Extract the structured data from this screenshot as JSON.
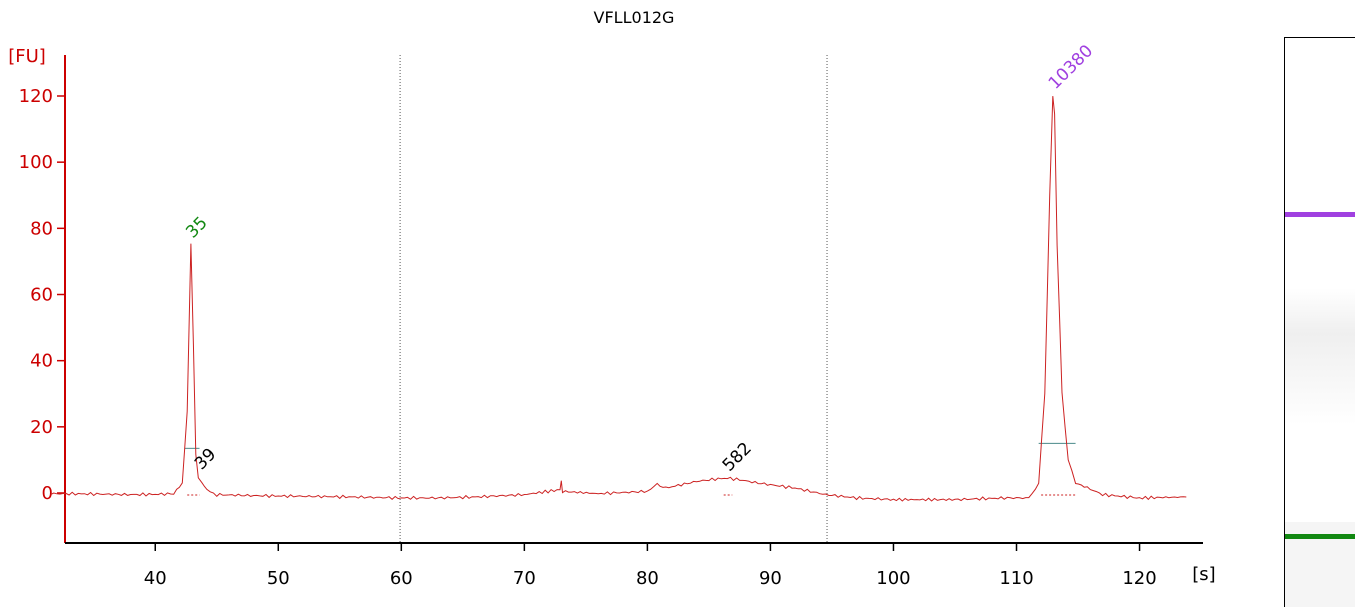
{
  "chart_data": {
    "type": "line",
    "title": "VFLL012G",
    "xlabel": "[s]",
    "ylabel": "[FU]",
    "xlim": [
      31,
      124
    ],
    "ylim": [
      -14,
      133
    ],
    "x_ticks": [
      40,
      50,
      60,
      70,
      80,
      90,
      100,
      110,
      120
    ],
    "y_ticks": [
      0,
      20,
      40,
      60,
      80,
      100,
      120
    ],
    "axis_color": "#cc0000",
    "series": [
      {
        "color": "#cc2222",
        "x": [
          31.5,
          35,
          38,
          40,
          41.5,
          42.2,
          42.6,
          42.9,
          43.1,
          43.3,
          43.5,
          43.8,
          44.2,
          45,
          48,
          52,
          56,
          60,
          63,
          66,
          70,
          72.9,
          73.0,
          73.1,
          76,
          80,
          80.8,
          81.5,
          84,
          85.5,
          86.5,
          87.5,
          89,
          92,
          94.5,
          97,
          100,
          105,
          109,
          111,
          111.8,
          112.3,
          112.7,
          112.95,
          113.1,
          113.3,
          113.7,
          114.2,
          114.8,
          115.5,
          117,
          120,
          123.8
        ],
        "y": [
          -0.2,
          -0.3,
          -0.5,
          -0.4,
          -0.2,
          3,
          25,
          75,
          45,
          12,
          5,
          3,
          1,
          -0.5,
          -0.8,
          -1,
          -1.2,
          -1.5,
          -1.5,
          -1.2,
          -0.5,
          1,
          3.5,
          0.5,
          -0.2,
          0.5,
          2.5,
          1.5,
          3.5,
          4.2,
          4.5,
          4,
          3,
          1.5,
          -0.5,
          -1.5,
          -2,
          -2,
          -1.5,
          -1.5,
          3,
          30,
          90,
          120,
          115,
          75,
          30,
          10,
          3,
          2,
          -0.5,
          -1.5,
          -1.2
        ]
      }
    ],
    "vertical_markers_x": [
      59.9,
      94.6
    ],
    "peak_labels": [
      {
        "text": "35",
        "x": 42.9,
        "y": 75,
        "color": "#118811"
      },
      {
        "text": "39",
        "x": 43.6,
        "y": 5,
        "color": "#000000"
      },
      {
        "text": "582",
        "x": 86.5,
        "y": 4.5,
        "color": "#000000"
      },
      {
        "text": "10380",
        "x": 113.0,
        "y": 120,
        "color": "#a040e0"
      }
    ],
    "peak_baselines": [
      {
        "x1": 42.4,
        "x2": 43.6,
        "y": 13.5
      },
      {
        "x1": 111.8,
        "x2": 114.8,
        "y": 15
      }
    ],
    "peak_dotted_bounds": [
      {
        "x1": 42.6,
        "x2": 43.6
      },
      {
        "x1": 86.2,
        "x2": 86.9
      },
      {
        "x1": 112.0,
        "x2": 114.8
      }
    ]
  },
  "gel": {
    "upper_band_color": "#a040e0",
    "lower_band_color": "#118811"
  }
}
